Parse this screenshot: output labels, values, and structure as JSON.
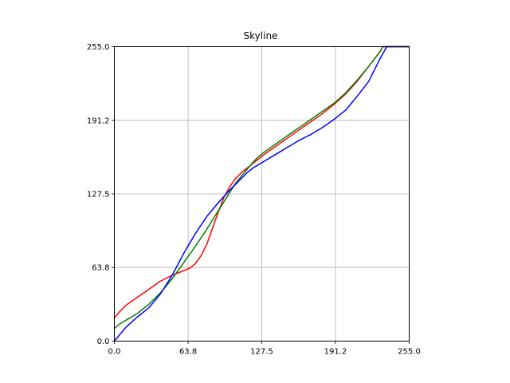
{
  "chart_data": {
    "type": "line",
    "title": "Skyline",
    "xlabel": "",
    "ylabel": "",
    "xlim": [
      0,
      255
    ],
    "ylim": [
      0,
      255
    ],
    "grid": true,
    "x_ticks": [
      "0.0",
      "63.8",
      "127.5",
      "191.2",
      "255.0"
    ],
    "y_ticks": [
      "0.0",
      "63.8",
      "127.5",
      "191.2",
      "255.0"
    ],
    "x_tick_values": [
      0,
      63.8,
      127.5,
      191.2,
      255
    ],
    "y_tick_values": [
      0,
      63.8,
      127.5,
      191.2,
      255
    ],
    "series": [
      {
        "color": "#ff0000",
        "points": [
          [
            0,
            20
          ],
          [
            5,
            26
          ],
          [
            10,
            31
          ],
          [
            20,
            38
          ],
          [
            30,
            45
          ],
          [
            40,
            52
          ],
          [
            50,
            57
          ],
          [
            55,
            59
          ],
          [
            60,
            61
          ],
          [
            65,
            63
          ],
          [
            70,
            67
          ],
          [
            75,
            74
          ],
          [
            80,
            84
          ],
          [
            85,
            98
          ],
          [
            90,
            112
          ],
          [
            95,
            125
          ],
          [
            100,
            134
          ],
          [
            105,
            141
          ],
          [
            110,
            146
          ],
          [
            115,
            150
          ],
          [
            120,
            154
          ],
          [
            125,
            158
          ],
          [
            130,
            162
          ],
          [
            140,
            169
          ],
          [
            150,
            176
          ],
          [
            160,
            183
          ],
          [
            170,
            190
          ],
          [
            180,
            197
          ],
          [
            190,
            205
          ],
          [
            200,
            214
          ],
          [
            210,
            225
          ],
          [
            220,
            238
          ],
          [
            230,
            251
          ],
          [
            232,
            255
          ],
          [
            255,
            255
          ]
        ]
      },
      {
        "color": "#008000",
        "points": [
          [
            0,
            11
          ],
          [
            5,
            15
          ],
          [
            10,
            18
          ],
          [
            20,
            24
          ],
          [
            30,
            32
          ],
          [
            40,
            42
          ],
          [
            50,
            54
          ],
          [
            60,
            68
          ],
          [
            70,
            82
          ],
          [
            80,
            97
          ],
          [
            90,
            113
          ],
          [
            100,
            129
          ],
          [
            105,
            137
          ],
          [
            110,
            143
          ],
          [
            115,
            149
          ],
          [
            120,
            155
          ],
          [
            125,
            160
          ],
          [
            130,
            164
          ],
          [
            140,
            171
          ],
          [
            150,
            178
          ],
          [
            160,
            185
          ],
          [
            170,
            192
          ],
          [
            180,
            199
          ],
          [
            190,
            206
          ],
          [
            200,
            215
          ],
          [
            210,
            226
          ],
          [
            220,
            238
          ],
          [
            230,
            251
          ],
          [
            232,
            255
          ],
          [
            255,
            255
          ]
        ]
      },
      {
        "color": "#0000ff",
        "points": [
          [
            0,
            0
          ],
          [
            5,
            6
          ],
          [
            10,
            12
          ],
          [
            20,
            21
          ],
          [
            30,
            29
          ],
          [
            40,
            41
          ],
          [
            50,
            57
          ],
          [
            60,
            76
          ],
          [
            70,
            93
          ],
          [
            80,
            108
          ],
          [
            90,
            120
          ],
          [
            100,
            131
          ],
          [
            110,
            141
          ],
          [
            115,
            146
          ],
          [
            120,
            150
          ],
          [
            130,
            156
          ],
          [
            140,
            162
          ],
          [
            150,
            168
          ],
          [
            160,
            174
          ],
          [
            170,
            179
          ],
          [
            180,
            185
          ],
          [
            190,
            192
          ],
          [
            200,
            200
          ],
          [
            210,
            212
          ],
          [
            220,
            225
          ],
          [
            225,
            235
          ],
          [
            230,
            245
          ],
          [
            235,
            254
          ],
          [
            236,
            255
          ],
          [
            255,
            255
          ]
        ]
      }
    ]
  }
}
